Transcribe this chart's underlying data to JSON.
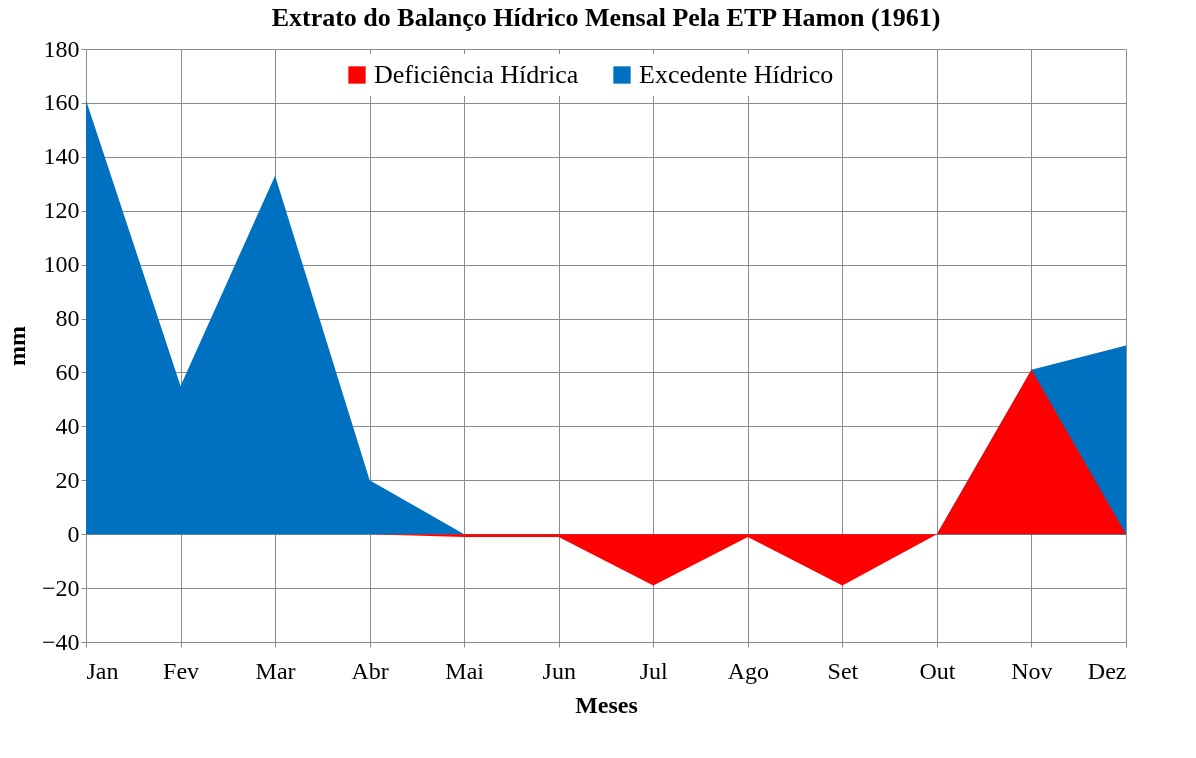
{
  "chart_data": {
    "type": "area",
    "title": "Extrato do Balanço Hídrico Mensal Pela ETP Hamon (1961)",
    "xlabel": "Meses",
    "ylabel": "mm",
    "categories": [
      "Jan",
      "Fev",
      "Mar",
      "Abr",
      "Mai",
      "Jun",
      "Jul",
      "Ago",
      "Set",
      "Out",
      "Nov",
      "Dez"
    ],
    "series": [
      {
        "name": "Deficiência Hídrica",
        "color": "#ff0000",
        "values": [
          0,
          0,
          0,
          0,
          -1,
          -1,
          -19,
          -1,
          -19,
          0,
          61,
          0
        ]
      },
      {
        "name": "Excedente Hídrico",
        "color": "#0070c0",
        "values": [
          161,
          55,
          133,
          20,
          0,
          0,
          0,
          0,
          0,
          0,
          61,
          70
        ]
      }
    ],
    "ylim": [
      -40,
      180
    ],
    "yticks": [
      -40,
      -20,
      0,
      20,
      40,
      60,
      80,
      100,
      120,
      140,
      160,
      180
    ],
    "grid": true,
    "legend": "top"
  }
}
